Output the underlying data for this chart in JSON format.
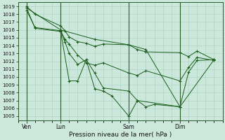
{
  "xlabel": "Pression niveau de la mer( hPa )",
  "ylim": [
    1004.5,
    1019.5
  ],
  "yticks": [
    1005,
    1006,
    1007,
    1008,
    1009,
    1010,
    1011,
    1012,
    1013,
    1014,
    1015,
    1016,
    1017,
    1018,
    1019
  ],
  "bg_color": "#cce8dc",
  "grid_color": "#aacfbe",
  "line_color": "#1a5e1a",
  "xtick_labels": [
    "Ven",
    "Lun",
    "Sam",
    "Dim"
  ],
  "xtick_positions": [
    1,
    5,
    13,
    19
  ],
  "xlim": [
    0,
    24
  ],
  "series1_x": [
    1,
    2,
    5,
    5.5,
    6,
    7,
    8,
    9,
    10,
    13,
    14,
    15,
    19,
    20,
    21,
    23
  ],
  "series1_y": [
    1019.0,
    1018.0,
    1016.5,
    1015.9,
    1015.1,
    1014.5,
    1014.3,
    1013.9,
    1014.2,
    1014.1,
    1013.5,
    1013.2,
    1013.1,
    1012.6,
    1013.3,
    1012.2
  ],
  "series2_x": [
    1,
    2,
    5,
    5.5,
    6,
    7,
    8,
    9,
    10,
    13,
    14,
    15,
    19,
    20,
    21,
    23
  ],
  "series2_y": [
    1018.5,
    1016.3,
    1015.9,
    1014.8,
    1014.2,
    1012.8,
    1011.8,
    1011.5,
    1011.8,
    1010.5,
    1010.2,
    1010.8,
    1009.5,
    1011.2,
    1012.5,
    1012.1
  ],
  "series3_x": [
    1,
    2,
    5,
    5.5,
    6,
    7,
    8,
    9,
    10,
    13,
    14,
    19,
    20,
    21,
    23
  ],
  "series3_y": [
    1018.8,
    1016.2,
    1015.8,
    1014.5,
    1013.0,
    1011.6,
    1012.2,
    1010.5,
    1008.6,
    1008.2,
    1007.0,
    1006.2,
    1010.6,
    1012.1,
    1012.2
  ],
  "series4_x": [
    1,
    5,
    9,
    13,
    15,
    19,
    23
  ],
  "series4_y": [
    1018.8,
    1016.0,
    1014.8,
    1014.1,
    1013.5,
    1006.2,
    1012.2
  ],
  "series5_x": [
    5,
    6,
    7,
    8,
    9,
    10,
    11,
    13,
    14,
    15,
    16,
    19
  ],
  "series5_y": [
    1015.8,
    1009.5,
    1009.5,
    1012.2,
    1008.5,
    1008.2,
    1007.6,
    1005.0,
    1007.0,
    1006.2,
    1006.5,
    1006.2
  ],
  "figsize": [
    3.2,
    2.0
  ],
  "dpi": 100
}
